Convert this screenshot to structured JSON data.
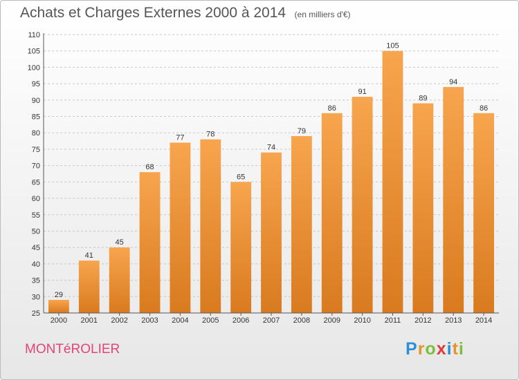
{
  "header": {
    "title": "Achats et Charges Externes 2000 à 2014",
    "subtitle": "(en milliers d'€)"
  },
  "footer": {
    "commune": "MONTéROLIER",
    "logo_letters": [
      {
        "char": "P",
        "color": "#2a8fd6"
      },
      {
        "char": "r",
        "color": "#e8932a"
      },
      {
        "char": "o",
        "color": "#7cbf3a"
      },
      {
        "char": "x",
        "color": "#e03a3a"
      },
      {
        "char": "i",
        "color": "#2a8fd6"
      },
      {
        "char": "t",
        "color": "#e8932a"
      },
      {
        "char": "i",
        "color": "#7cbf3a"
      }
    ]
  },
  "chart_data": {
    "type": "bar",
    "title": "Achats et Charges Externes 2000 à 2014",
    "subtitle": "(en milliers d'€)",
    "categories": [
      "2000",
      "2001",
      "2002",
      "2003",
      "2004",
      "2005",
      "2006",
      "2007",
      "2008",
      "2009",
      "2010",
      "2011",
      "2012",
      "2013",
      "2014"
    ],
    "values": [
      29,
      41,
      45,
      68,
      77,
      78,
      65,
      74,
      79,
      86,
      91,
      105,
      89,
      94,
      86
    ],
    "yticks": [
      25,
      30,
      35,
      40,
      45,
      50,
      55,
      60,
      65,
      70,
      75,
      80,
      85,
      90,
      95,
      100,
      105,
      110
    ],
    "ylim": [
      25,
      110
    ],
    "grid": true,
    "colors": {
      "bar_top": "#f7a54e",
      "bar_bottom": "#d97a1f",
      "grid": "#c8c8c8"
    }
  }
}
